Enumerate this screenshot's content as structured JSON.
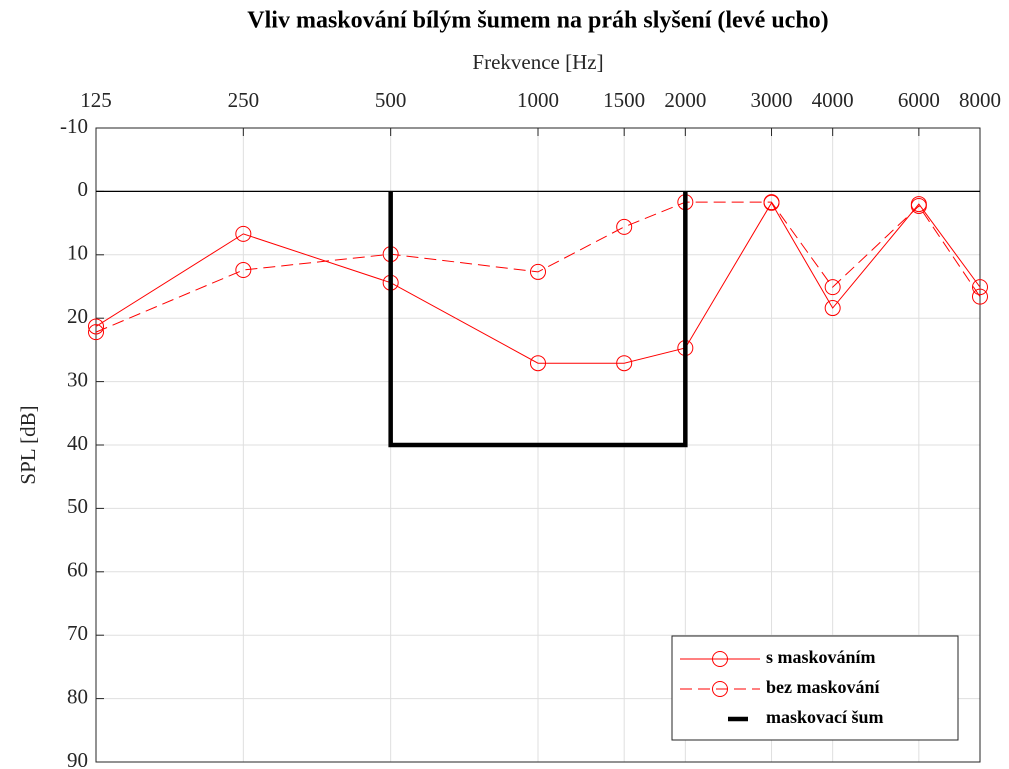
{
  "chart_data": {
    "type": "line",
    "title": "Vliv maskování bílým šumem na práh slyšení (levé ucho)",
    "x_label": "Frekvence [Hz]",
    "y_label": "SPL [dB]",
    "x": [
      125,
      250,
      500,
      1000,
      1500,
      2000,
      3000,
      4000,
      6000,
      8000
    ],
    "series": [
      {
        "name": "s maskováním",
        "color": "#ff0000",
        "style": "solid",
        "marker": "circle",
        "values": [
          21.3,
          6.7,
          14.4,
          27.1,
          27.1,
          24.7,
          1.8,
          18.4,
          2.0,
          15.1
        ]
      },
      {
        "name": "bez maskování",
        "color": "#ff0000",
        "style": "dashed",
        "marker": "circle",
        "values": [
          22.2,
          12.4,
          9.9,
          12.7,
          5.6,
          1.7,
          1.7,
          15.1,
          2.3,
          16.6
        ]
      },
      {
        "name": "maskovací šum",
        "color": "#000000",
        "style": "thick",
        "marker": "none",
        "x": [
          500,
          500,
          2000,
          2000
        ],
        "values": [
          0,
          40,
          40,
          0
        ]
      }
    ],
    "xlim": [
      125,
      8000
    ],
    "x_log": true,
    "x_axis_position": "top",
    "xticks": [
      125,
      250,
      500,
      1000,
      1500,
      2000,
      3000,
      4000,
      6000,
      8000
    ],
    "ylim": [
      -10,
      90
    ],
    "y_reversed": true,
    "yticks": [
      -10,
      0,
      10,
      20,
      30,
      40,
      50,
      60,
      70,
      80,
      90
    ],
    "reference_line": 0,
    "grid": true,
    "legend": "southeast"
  }
}
